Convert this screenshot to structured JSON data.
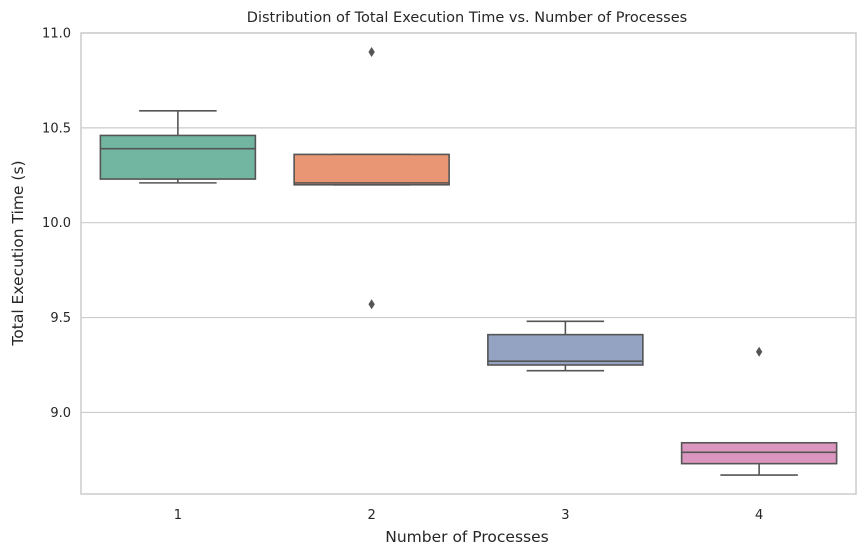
{
  "chart_data": {
    "type": "box",
    "title": "Distribution of Total Execution Time vs. Number of Processes",
    "xlabel": "Number of Processes",
    "ylabel": "Total Execution Time (s)",
    "ylim": [
      8.57,
      11.0
    ],
    "yticks": [
      "9.0",
      "9.5",
      "10.0",
      "10.5",
      "11.0"
    ],
    "grid": "horizontal",
    "categories": [
      "1",
      "2",
      "3",
      "4"
    ],
    "boxes": [
      {
        "category": "1",
        "whisker_low": 10.21,
        "q1": 10.23,
        "median": 10.39,
        "q3": 10.46,
        "whisker_high": 10.59,
        "outliers": [],
        "color": "#72b6a1"
      },
      {
        "category": "2",
        "whisker_low": 10.2,
        "q1": 10.2,
        "median": 10.21,
        "q3": 10.36,
        "whisker_high": 10.36,
        "outliers": [
          10.9,
          9.57
        ],
        "color": "#e99675"
      },
      {
        "category": "3",
        "whisker_low": 9.22,
        "q1": 9.25,
        "median": 9.27,
        "q3": 9.41,
        "whisker_high": 9.48,
        "outliers": [],
        "color": "#95a3c3"
      },
      {
        "category": "4",
        "whisker_low": 8.67,
        "q1": 8.73,
        "median": 8.79,
        "q3": 8.84,
        "whisker_high": 8.84,
        "outliers": [
          9.32
        ],
        "color": "#db96c0"
      }
    ],
    "colors": {
      "line": "#555555",
      "grid": "#cccccc",
      "spine": "#cccccc"
    }
  }
}
